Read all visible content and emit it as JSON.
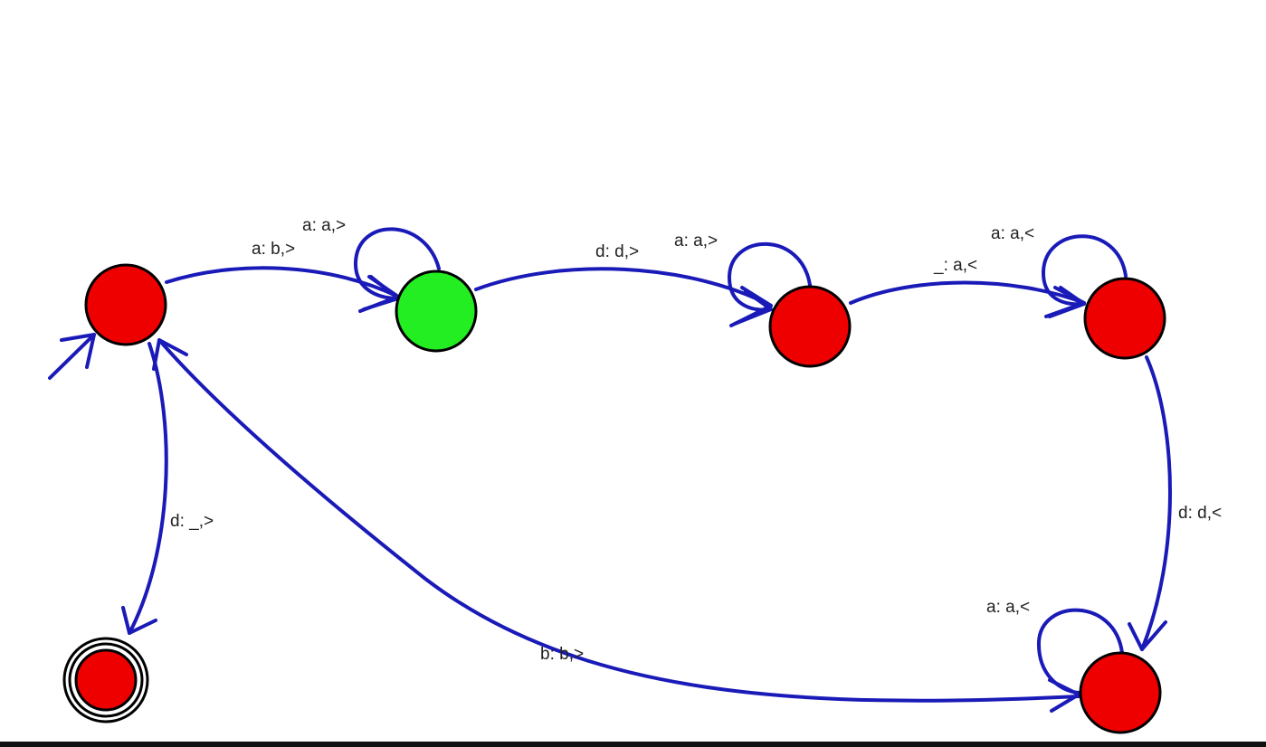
{
  "colors": {
    "edge": "#1a1ab8",
    "state_default": "#ee0000",
    "state_highlight": "#22ee22",
    "outline": "#000000",
    "label": "#222222"
  },
  "states": [
    {
      "id": "q0",
      "initial": true,
      "final": false,
      "highlighted": false
    },
    {
      "id": "q1",
      "initial": false,
      "final": false,
      "highlighted": true
    },
    {
      "id": "q2",
      "initial": false,
      "final": false,
      "highlighted": false
    },
    {
      "id": "q3",
      "initial": false,
      "final": false,
      "highlighted": false
    },
    {
      "id": "q4",
      "initial": false,
      "final": false,
      "highlighted": false
    },
    {
      "id": "q5",
      "initial": false,
      "final": true,
      "highlighted": false
    }
  ],
  "transitions": [
    {
      "from": "q0",
      "to": "q1",
      "label": "a: b,>"
    },
    {
      "from": "q1",
      "to": "q1",
      "label": "a: a,>"
    },
    {
      "from": "q1",
      "to": "q2",
      "label": "d: d,>"
    },
    {
      "from": "q2",
      "to": "q2",
      "label": "a: a,>"
    },
    {
      "from": "q2",
      "to": "q3",
      "label": "_: a,<"
    },
    {
      "from": "q3",
      "to": "q3",
      "label": "a: a,<"
    },
    {
      "from": "q3",
      "to": "q4",
      "label": "d: d,<"
    },
    {
      "from": "q4",
      "to": "q4",
      "label": "a: a,<"
    },
    {
      "from": "q4",
      "to": "q0",
      "label": "b: b,>"
    },
    {
      "from": "q0",
      "to": "q5",
      "label": "d: _,>"
    }
  ]
}
